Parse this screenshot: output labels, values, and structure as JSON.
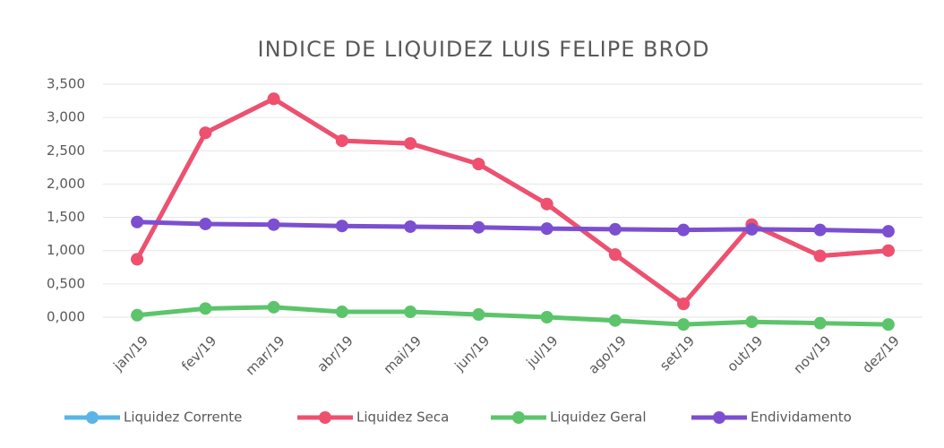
{
  "chart_data": {
    "type": "line",
    "title": "INDICE DE LIQUIDEZ LUIS FELIPE BROD",
    "categories": [
      "jan/19",
      "fev/19",
      "mar/19",
      "abr/19",
      "mai/19",
      "jun/19",
      "jul/19",
      "ago/19",
      "set/19",
      "out/19",
      "nov/19",
      "dez/19"
    ],
    "series": [
      {
        "name": "Liquidez Corrente",
        "color": "#5ab4e5",
        "values": [
          0.87,
          2.77,
          3.28,
          2.65,
          2.61,
          2.3,
          1.7,
          0.94,
          0.2,
          1.39,
          0.92,
          1.0
        ]
      },
      {
        "name": "Liquidez Seca",
        "color": "#f0506e",
        "values": [
          0.87,
          2.77,
          3.28,
          2.65,
          2.61,
          2.3,
          1.7,
          0.94,
          0.2,
          1.39,
          0.92,
          1.0
        ]
      },
      {
        "name": "Liquidez Geral",
        "color": "#5cc46a",
        "values": [
          0.03,
          0.13,
          0.15,
          0.08,
          0.08,
          0.04,
          0.0,
          -0.05,
          -0.11,
          -0.07,
          -0.09,
          -0.11
        ]
      },
      {
        "name": "Endividamento",
        "color": "#7b4fd0",
        "values": [
          1.43,
          1.4,
          1.39,
          1.37,
          1.36,
          1.35,
          1.33,
          1.32,
          1.31,
          1.32,
          1.31,
          1.29
        ]
      }
    ],
    "ylim": [
      -0.15,
      3.5
    ],
    "yticks": [
      {
        "value": 0,
        "label": "0,000"
      },
      {
        "value": 0.5,
        "label": "0,500"
      },
      {
        "value": 1,
        "label": "1,000"
      },
      {
        "value": 1.5,
        "label": "1,500"
      },
      {
        "value": 2,
        "label": "2,000"
      },
      {
        "value": 2.5,
        "label": "2,500"
      },
      {
        "value": 3,
        "label": "3,000"
      },
      {
        "value": 3.5,
        "label": "3,500"
      }
    ],
    "grid": true,
    "legend": "bottom"
  }
}
